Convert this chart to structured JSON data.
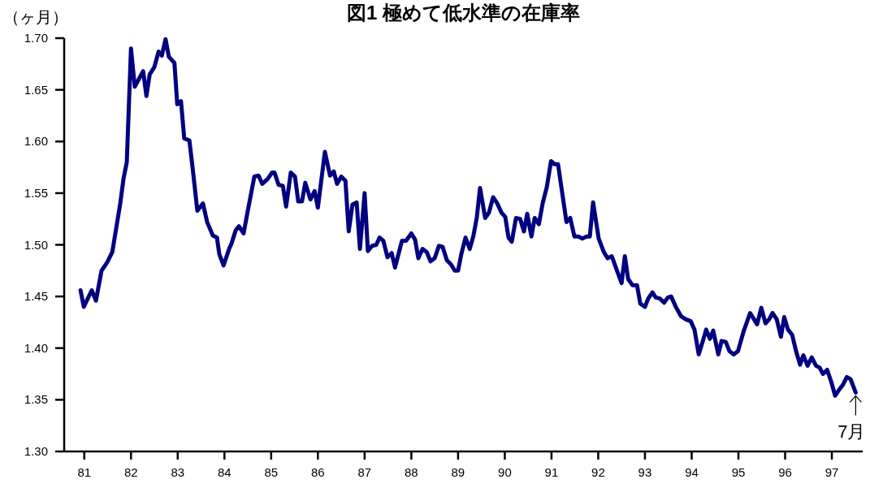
{
  "chart_data": {
    "type": "line",
    "title": "図1 極めて低水準の在庫率",
    "ylabel": "（ヶ月）",
    "x": [
      80.92,
      80.99,
      81.16,
      81.25,
      81.37,
      81.49,
      81.6,
      81.68,
      81.77,
      81.84,
      81.91,
      82.0,
      82.08,
      82.26,
      82.33,
      82.4,
      82.5,
      82.59,
      82.66,
      82.74,
      82.81,
      82.93,
      82.99,
      83.07,
      83.14,
      83.25,
      83.32,
      83.42,
      83.54,
      83.63,
      83.75,
      83.84,
      83.89,
      83.98,
      84.1,
      84.15,
      84.24,
      84.31,
      84.41,
      84.5,
      84.64,
      84.73,
      84.81,
      84.93,
      85.02,
      85.07,
      85.16,
      85.25,
      85.32,
      85.42,
      85.51,
      85.58,
      85.66,
      85.73,
      85.84,
      85.93,
      86.0,
      86.15,
      86.26,
      86.34,
      86.41,
      86.5,
      86.59,
      86.66,
      86.74,
      86.83,
      86.9,
      87.0,
      87.07,
      87.16,
      87.25,
      87.32,
      87.4,
      87.49,
      87.58,
      87.65,
      87.8,
      87.89,
      88.0,
      88.08,
      88.15,
      88.24,
      88.33,
      88.41,
      88.5,
      88.59,
      88.67,
      88.76,
      88.85,
      88.93,
      89.0,
      89.07,
      89.16,
      89.25,
      89.33,
      89.4,
      89.47,
      89.58,
      89.66,
      89.75,
      89.84,
      89.93,
      90.01,
      90.08,
      90.15,
      90.24,
      90.33,
      90.41,
      90.48,
      90.57,
      90.64,
      90.73,
      90.81,
      90.9,
      90.99,
      91.07,
      91.14,
      91.23,
      91.32,
      91.4,
      91.49,
      91.58,
      91.66,
      91.75,
      91.82,
      91.89,
      92.01,
      92.12,
      92.2,
      92.29,
      92.41,
      92.5,
      92.57,
      92.64,
      92.73,
      92.83,
      92.9,
      93.0,
      93.07,
      93.16,
      93.23,
      93.32,
      93.41,
      93.49,
      93.56,
      93.66,
      93.77,
      93.87,
      93.98,
      94.06,
      94.15,
      94.24,
      94.31,
      94.39,
      94.46,
      94.57,
      94.64,
      94.73,
      94.81,
      94.9,
      94.99,
      95.11,
      95.25,
      95.32,
      95.4,
      95.49,
      95.58,
      95.66,
      95.73,
      95.82,
      95.91,
      95.98,
      96.06,
      96.15,
      96.24,
      96.32,
      96.39,
      96.48,
      96.57,
      96.66,
      96.74,
      96.81,
      96.9,
      96.99,
      97.07,
      97.16,
      97.23,
      97.32,
      97.4,
      97.51
    ],
    "series": [
      {
        "color": "#000080",
        "values": [
          1.456,
          1.44,
          1.456,
          1.446,
          1.475,
          1.483,
          1.493,
          1.515,
          1.54,
          1.564,
          1.58,
          1.69,
          1.653,
          1.668,
          1.644,
          1.665,
          1.672,
          1.687,
          1.683,
          1.699,
          1.682,
          1.676,
          1.636,
          1.639,
          1.603,
          1.601,
          1.574,
          1.533,
          1.54,
          1.522,
          1.509,
          1.507,
          1.491,
          1.48,
          1.496,
          1.501,
          1.514,
          1.518,
          1.511,
          1.533,
          1.566,
          1.567,
          1.559,
          1.564,
          1.57,
          1.57,
          1.558,
          1.557,
          1.537,
          1.57,
          1.566,
          1.542,
          1.542,
          1.56,
          1.544,
          1.552,
          1.536,
          1.59,
          1.567,
          1.571,
          1.559,
          1.566,
          1.562,
          1.513,
          1.539,
          1.541,
          1.496,
          1.55,
          1.494,
          1.499,
          1.5,
          1.507,
          1.504,
          1.488,
          1.492,
          1.478,
          1.504,
          1.504,
          1.511,
          1.505,
          1.487,
          1.496,
          1.493,
          1.484,
          1.487,
          1.499,
          1.498,
          1.485,
          1.481,
          1.475,
          1.475,
          1.491,
          1.507,
          1.496,
          1.509,
          1.526,
          1.555,
          1.526,
          1.531,
          1.546,
          1.54,
          1.531,
          1.527,
          1.507,
          1.503,
          1.526,
          1.525,
          1.513,
          1.53,
          1.508,
          1.526,
          1.52,
          1.54,
          1.556,
          1.581,
          1.578,
          1.578,
          1.55,
          1.522,
          1.526,
          1.508,
          1.508,
          1.506,
          1.508,
          1.508,
          1.541,
          1.506,
          1.493,
          1.487,
          1.489,
          1.474,
          1.463,
          1.489,
          1.467,
          1.461,
          1.461,
          1.443,
          1.44,
          1.448,
          1.454,
          1.449,
          1.448,
          1.444,
          1.449,
          1.45,
          1.44,
          1.431,
          1.428,
          1.426,
          1.418,
          1.394,
          1.407,
          1.418,
          1.409,
          1.417,
          1.394,
          1.407,
          1.406,
          1.397,
          1.394,
          1.397,
          1.416,
          1.434,
          1.429,
          1.423,
          1.439,
          1.424,
          1.428,
          1.434,
          1.428,
          1.411,
          1.43,
          1.418,
          1.413,
          1.396,
          1.384,
          1.393,
          1.383,
          1.391,
          1.383,
          1.381,
          1.375,
          1.379,
          1.367,
          1.354,
          1.36,
          1.364,
          1.372,
          1.37,
          1.357
        ]
      }
    ],
    "xlim": [
      80.57,
      97.66
    ],
    "xticks": [
      81,
      82,
      83,
      84,
      85,
      86,
      87,
      88,
      89,
      90,
      91,
      92,
      93,
      94,
      95,
      96,
      97
    ],
    "ylim": [
      1.3,
      1.7
    ],
    "yticks": [
      {
        "value": 1.3,
        "label": "1.30"
      },
      {
        "value": 1.35,
        "label": "1.35"
      },
      {
        "value": 1.4,
        "label": "1.40"
      },
      {
        "value": 1.45,
        "label": "1.45"
      },
      {
        "value": 1.5,
        "label": "1.50"
      },
      {
        "value": 1.55,
        "label": "1.55"
      },
      {
        "value": 1.6,
        "label": "1.60"
      },
      {
        "value": 1.65,
        "label": "1.65"
      },
      {
        "value": 1.7,
        "label": "1.70"
      }
    ],
    "annotations": [
      {
        "text": "7月",
        "x": 97.51,
        "y": 1.357
      }
    ]
  }
}
